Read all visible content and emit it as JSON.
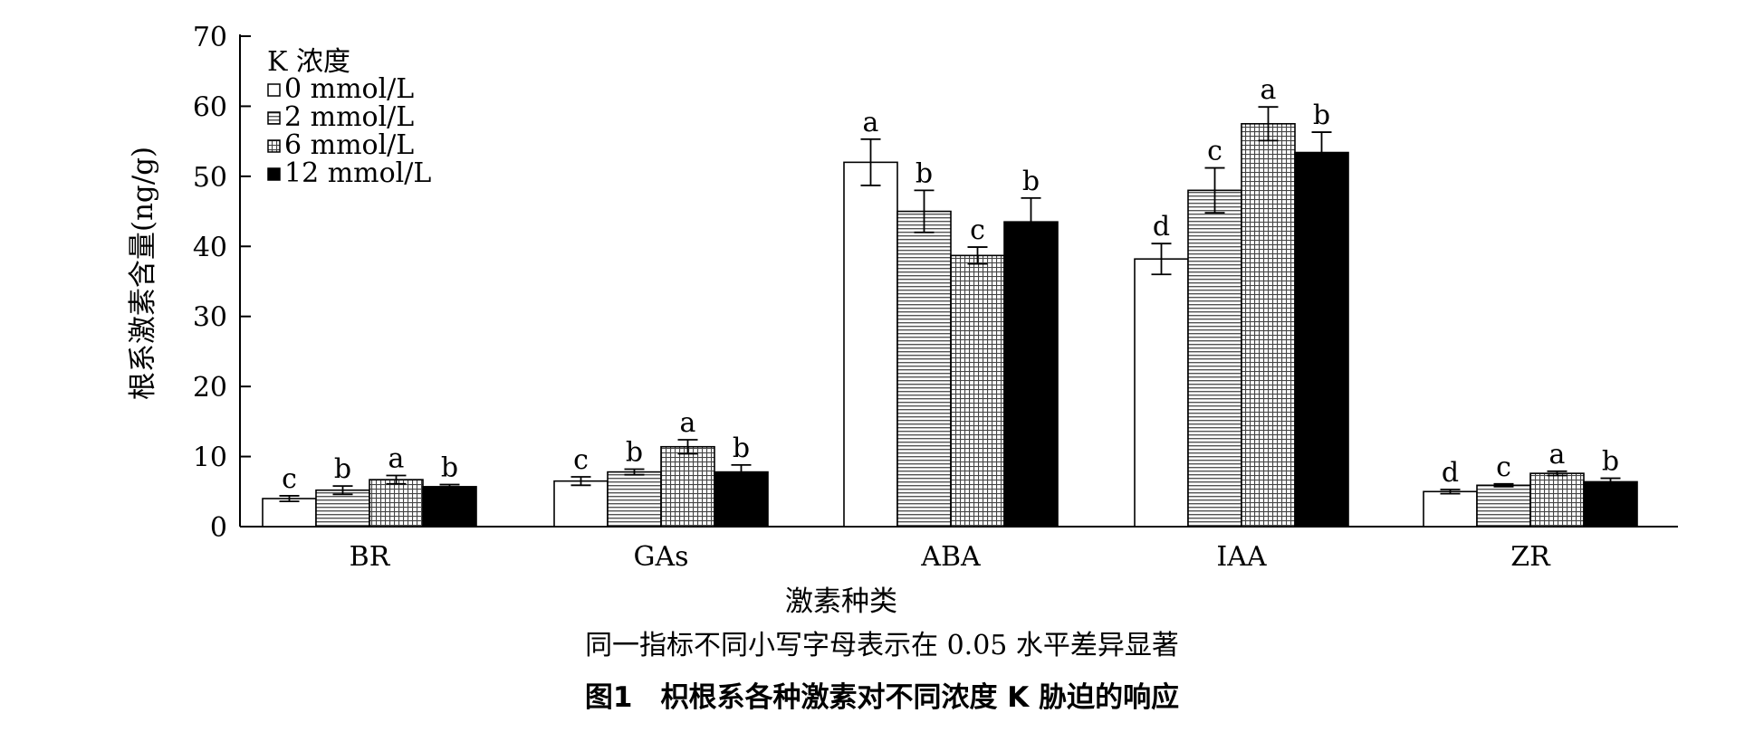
{
  "chart_data": {
    "type": "bar",
    "ylabel": "根系激素含量(ng/g)",
    "xlabel": "激素种类",
    "ylim": [
      0,
      70
    ],
    "yticks": [
      "0",
      "10",
      "20",
      "30",
      "40",
      "50",
      "60",
      "70"
    ],
    "categories": [
      "BR",
      "GAs",
      "ABA",
      "IAA",
      "ZR"
    ],
    "legend": {
      "title": "K 浓度",
      "position": "top-left"
    },
    "series": [
      {
        "name": "0 mmol/L",
        "fill": "white",
        "values": [
          4.0,
          6.5,
          52.0,
          38.2,
          5.0
        ],
        "errors": [
          0.4,
          0.6,
          3.3,
          2.2,
          0.3
        ],
        "letters": [
          "c",
          "c",
          "a",
          "d",
          "d"
        ]
      },
      {
        "name": "2 mmol/L",
        "fill": "hlines",
        "values": [
          5.2,
          7.8,
          45.0,
          48.0,
          5.9
        ],
        "errors": [
          0.6,
          0.4,
          3.0,
          3.2,
          0.2
        ],
        "letters": [
          "b",
          "b",
          "b",
          "c",
          "c"
        ]
      },
      {
        "name": "6 mmol/L",
        "fill": "grid",
        "values": [
          6.7,
          11.4,
          38.7,
          57.5,
          7.6
        ],
        "errors": [
          0.6,
          1.0,
          1.2,
          2.4,
          0.3
        ],
        "letters": [
          "a",
          "a",
          "c",
          "a",
          "a"
        ]
      },
      {
        "name": "12 mmol/L",
        "fill": "black",
        "values": [
          5.7,
          7.8,
          43.5,
          53.4,
          6.4
        ],
        "errors": [
          0.3,
          1.0,
          3.4,
          2.9,
          0.5
        ],
        "letters": [
          "b",
          "b",
          "b",
          "b",
          "b"
        ]
      }
    ]
  },
  "caption": {
    "note": "同一指标不同小写字母表示在 0.05 水平差异显著",
    "title": "图1　枳根系各种激素对不同浓度 K 胁迫的响应"
  }
}
